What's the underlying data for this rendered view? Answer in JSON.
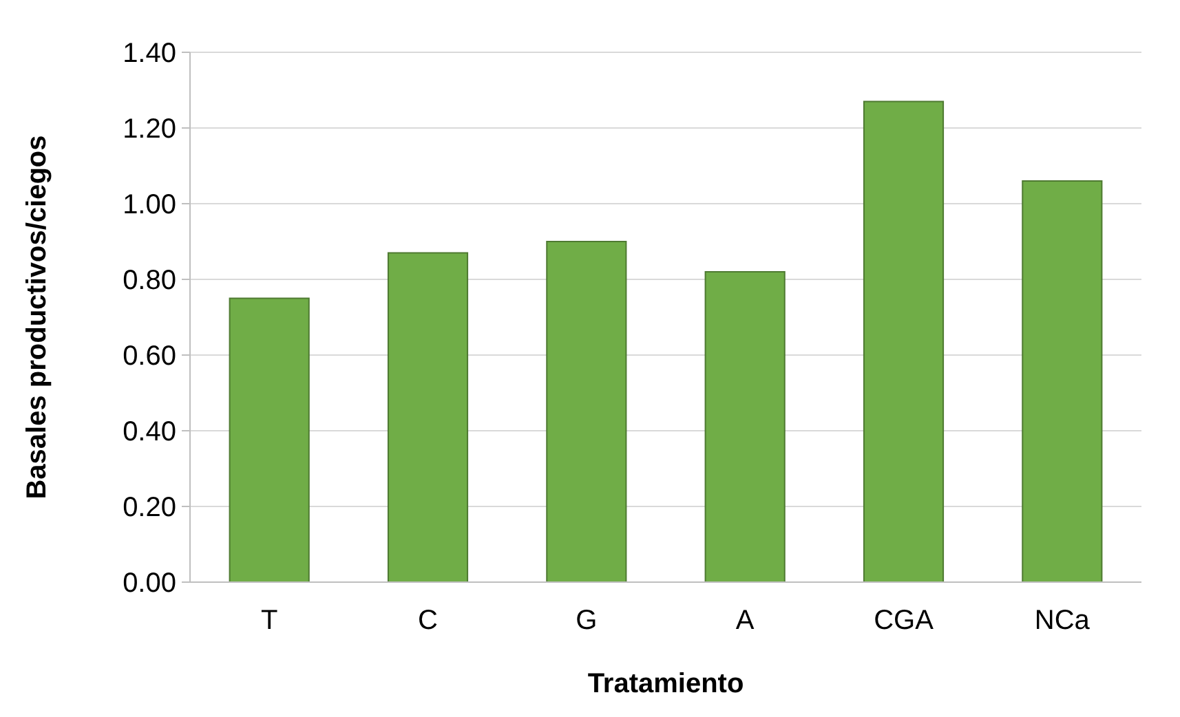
{
  "chart_data": {
    "type": "bar",
    "xlabel": "Tratamiento",
    "ylabel": "Basales productivos/ciegos",
    "categories": [
      "T",
      "C",
      "G",
      "A",
      "CGA",
      "NCa"
    ],
    "values": [
      0.75,
      0.87,
      0.9,
      0.82,
      1.27,
      1.06
    ],
    "color": "#70ad47",
    "ylim": [
      0,
      1.4
    ],
    "yticks": [
      {
        "value": 0,
        "label": "0.00"
      },
      {
        "value": 0.2,
        "label": "0.20"
      },
      {
        "value": 0.4,
        "label": "0.40"
      },
      {
        "value": 0.6,
        "label": "0.60"
      },
      {
        "value": 0.8,
        "label": "0.80"
      },
      {
        "value": 1,
        "label": "1.00"
      },
      {
        "value": 1.2,
        "label": "1.20"
      },
      {
        "value": 1.4,
        "label": "1.40"
      }
    ],
    "grid": "y"
  }
}
